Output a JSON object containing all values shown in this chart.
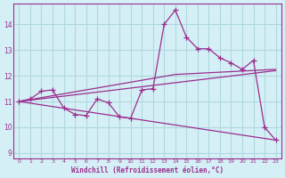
{
  "xlabel": "Windchill (Refroidissement éolien,°C)",
  "bg_color": "#d4eff5",
  "grid_color": "#b0d8e0",
  "line_color": "#9b2d8e",
  "x_ticks": [
    0,
    1,
    2,
    3,
    4,
    5,
    6,
    7,
    8,
    9,
    10,
    11,
    12,
    13,
    14,
    15,
    16,
    17,
    18,
    19,
    20,
    21,
    22,
    23
  ],
  "y_ticks": [
    9,
    10,
    11,
    12,
    13,
    14
  ],
  "ylim": [
    8.8,
    14.8
  ],
  "xlim": [
    -0.5,
    23.5
  ],
  "line1_x": [
    0,
    1,
    2,
    3,
    4,
    5,
    6,
    7,
    8,
    9,
    10,
    11,
    12,
    13,
    14,
    15,
    16,
    17,
    18,
    19,
    20,
    21,
    22,
    23
  ],
  "line1_y": [
    11.0,
    11.1,
    11.4,
    11.45,
    10.75,
    10.5,
    10.45,
    11.1,
    10.95,
    10.4,
    10.35,
    11.45,
    11.5,
    14.0,
    14.55,
    13.5,
    13.05,
    13.05,
    12.7,
    12.5,
    12.25,
    12.6,
    10.0,
    9.5
  ],
  "line2_x": [
    0,
    23
  ],
  "line2_y": [
    11.0,
    12.2
  ],
  "line3_x": [
    0,
    23
  ],
  "line3_y": [
    11.0,
    9.5
  ],
  "line4_x": [
    0,
    14,
    23
  ],
  "line4_y": [
    11.0,
    12.05,
    12.25
  ]
}
